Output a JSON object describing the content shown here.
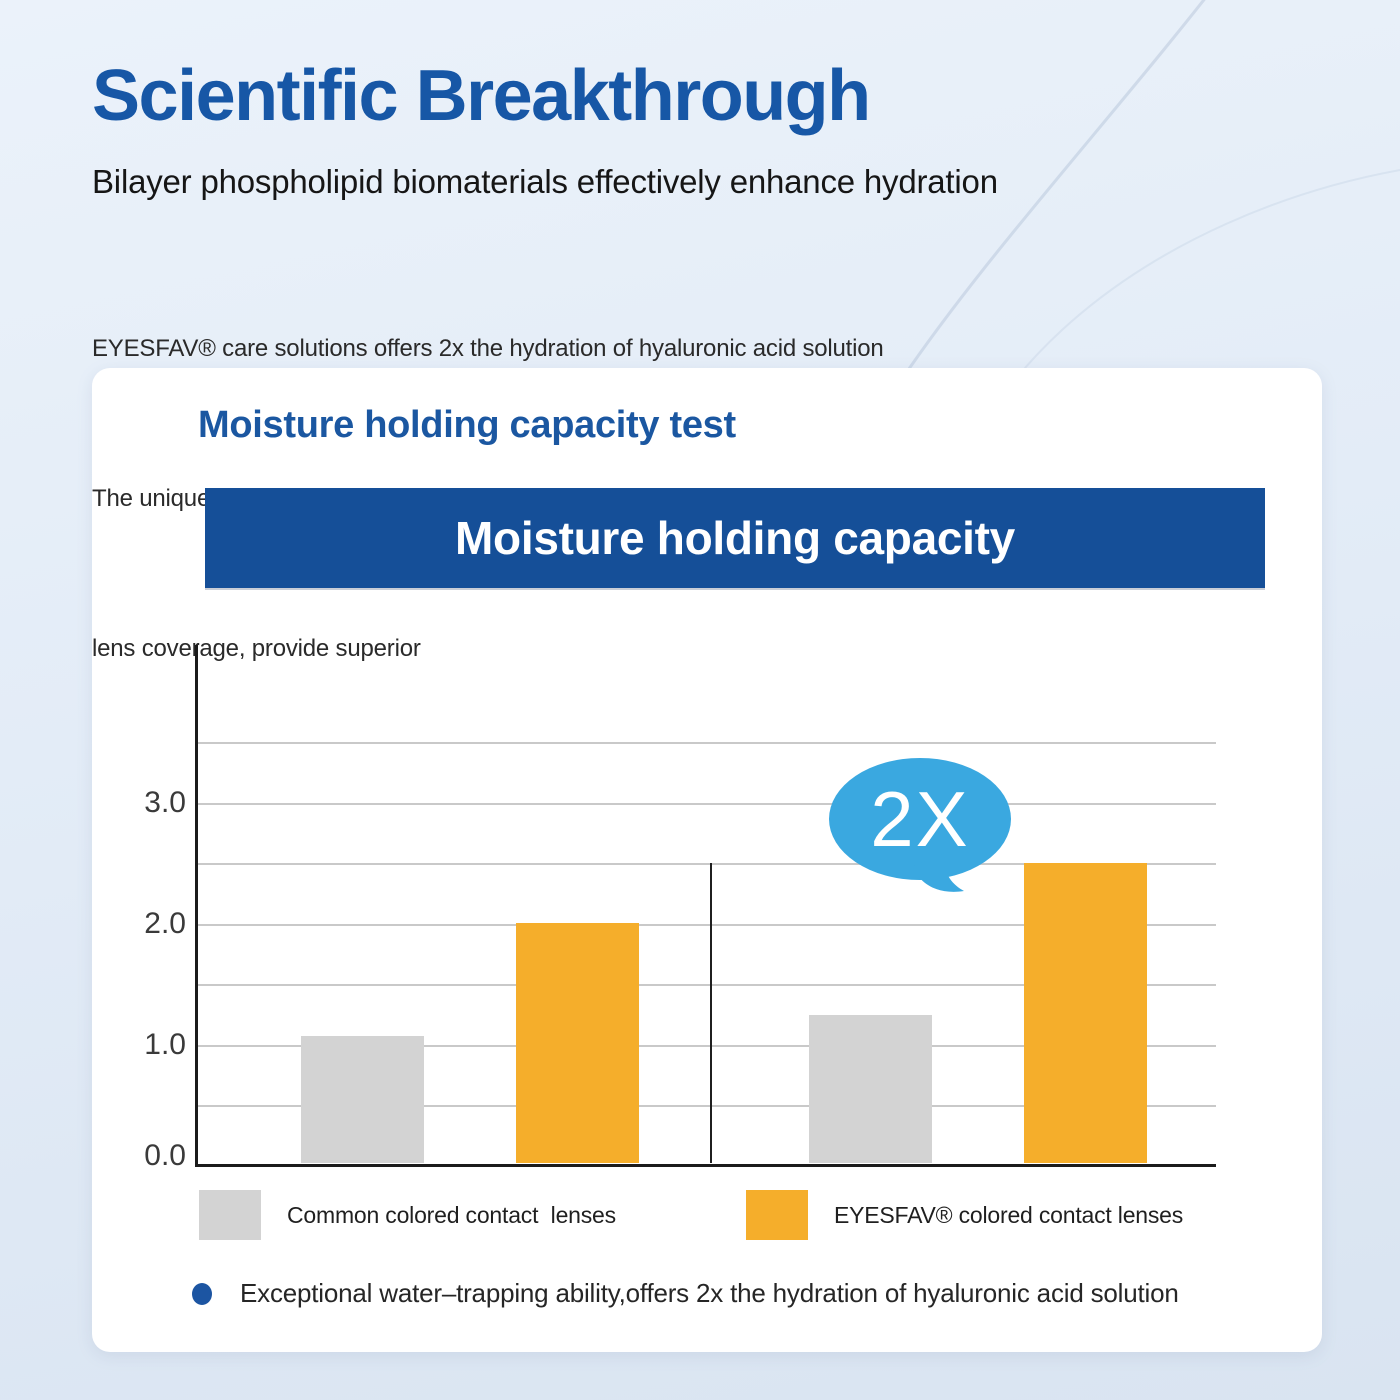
{
  "page": {
    "title": "Scientific Breakthrough",
    "subtitle": "Bilayer phospholipid biomaterials effectively enhance hydration",
    "paragraph_lines": [
      "EYESFAV® care solutions offers 2x the hydration of hyaluronic acid solution",
      "The unique pro perties of bilayer phosphollipid biomaterial, including excellent biocompatibility and complete",
      "lens coverage, provide superior"
    ],
    "accent_blue": "#1757a6"
  },
  "card": {
    "heading": "Moisture holding capacity test",
    "banner_title": "Moisture holding capacity",
    "banner_color": "#154f98",
    "footnote": "Exceptional water–trapping ability,offers 2x the hydration of hyaluronic acid solution",
    "footnote_bullet_color": "#1c55a2"
  },
  "chart_data": {
    "type": "bar",
    "title": "Moisture holding capacity",
    "categories": [
      "",
      ""
    ],
    "series": [
      {
        "name": "Common colored contact  lenses",
        "color": "#d3d3d3",
        "values": [
          1.05,
          1.22
        ]
      },
      {
        "name": "EYESFAV® colored contact lenses",
        "color": "#f5ae2b",
        "values": [
          1.98,
          2.48
        ]
      }
    ],
    "ylim": [
      0,
      4.3
    ],
    "yticks": [
      0,
      1,
      2,
      3
    ],
    "ytick_labels": [
      "0.0",
      "1.0",
      "2.0",
      "3.0"
    ],
    "gridline_step": 0.5,
    "gridline_max": 3.5,
    "grid": "on",
    "legend_position": "bottom",
    "annotation": {
      "text": "2X",
      "color": "#3aa8e0",
      "note": "speech bubble above second EYESFAV bar"
    }
  }
}
